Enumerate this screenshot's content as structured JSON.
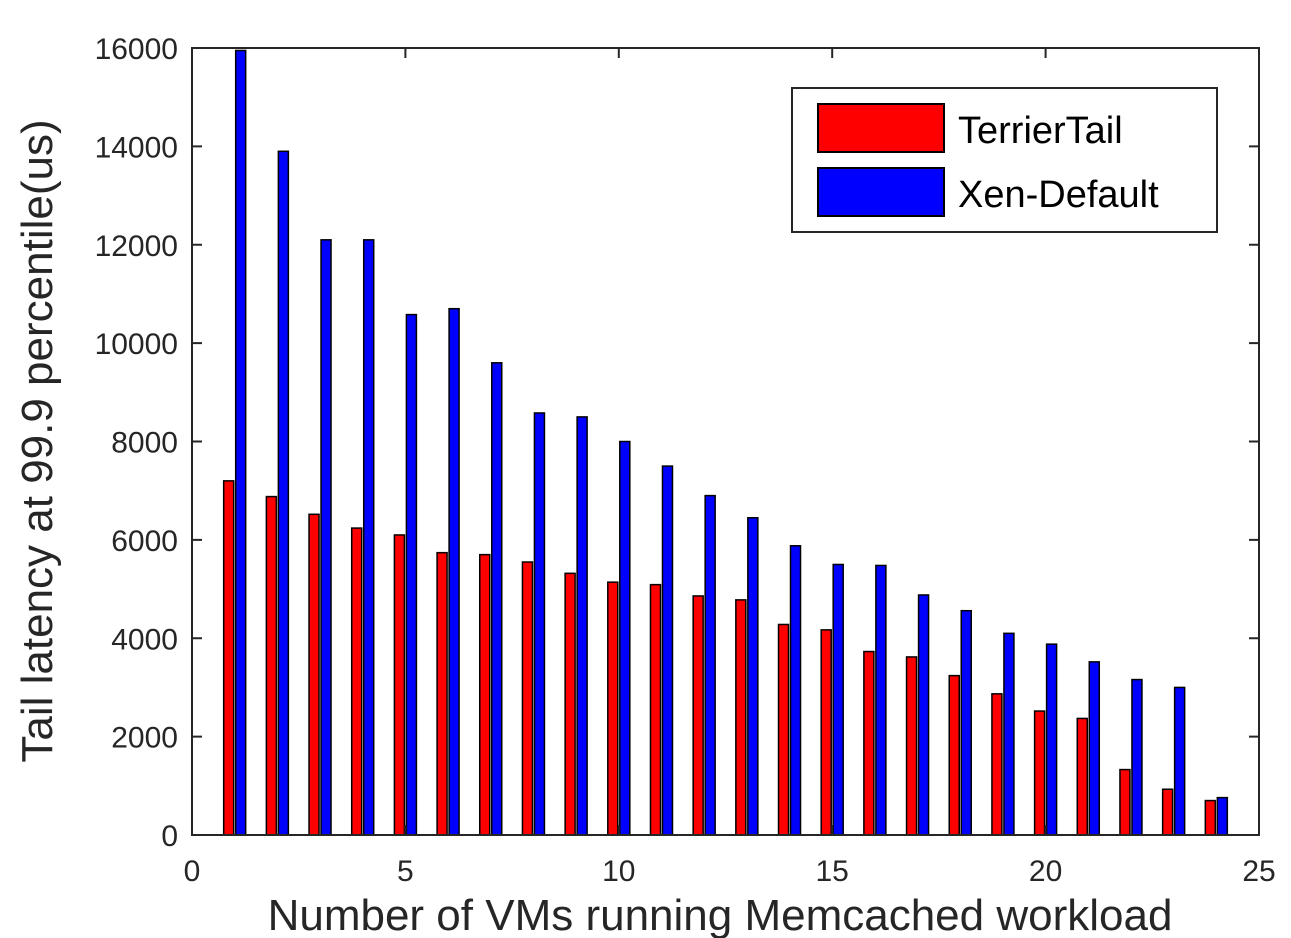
{
  "chart_data": {
    "type": "bar",
    "title": "",
    "xlabel": "Number of VMs running Memcached workload",
    "ylabel": "Tail latency at 99.9 percentile(us)",
    "xlim": [
      0,
      25
    ],
    "ylim": [
      0,
      16000
    ],
    "x_ticks": [
      0,
      5,
      10,
      15,
      20,
      25
    ],
    "y_ticks": [
      0,
      2000,
      4000,
      6000,
      8000,
      10000,
      12000,
      14000,
      16000
    ],
    "grid": false,
    "legend_position": "top-right",
    "x": [
      1,
      2,
      3,
      4,
      5,
      6,
      7,
      8,
      9,
      10,
      11,
      12,
      13,
      14,
      15,
      16,
      17,
      18,
      19,
      20,
      21,
      22,
      23,
      24
    ],
    "series": [
      {
        "name": "TerrierTail",
        "color": "#ff0000",
        "values": [
          7200,
          6880,
          6520,
          6240,
          6100,
          5740,
          5700,
          5550,
          5320,
          5140,
          5090,
          4860,
          4780,
          4280,
          4170,
          3730,
          3620,
          3240,
          2870,
          2520,
          2370,
          1330,
          930,
          700
        ]
      },
      {
        "name": "Xen-Default",
        "color": "#0000ff",
        "values": [
          15950,
          13900,
          12100,
          12100,
          10580,
          10700,
          9600,
          8580,
          8500,
          8000,
          7500,
          6900,
          6450,
          5880,
          5500,
          5480,
          4880,
          4560,
          4100,
          3880,
          3520,
          3160,
          3000,
          760
        ]
      }
    ]
  }
}
